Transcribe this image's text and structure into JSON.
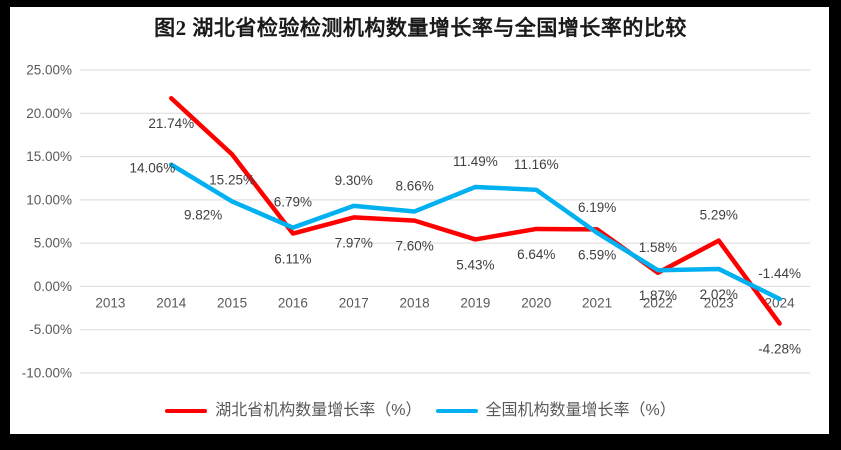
{
  "title": "图2 湖北省检验检测机构数量增长率与全国增长率的比较",
  "chart_data": {
    "type": "line",
    "title": "图2 湖北省检验检测机构数量增长率与全国增长率的比较",
    "categories": [
      "2013",
      "2014",
      "2015",
      "2016",
      "2017",
      "2018",
      "2019",
      "2020",
      "2021",
      "2022",
      "2023",
      "2024"
    ],
    "series": [
      {
        "name": "湖北省机构数量增长率（%）",
        "color": "#FF0000",
        "values": [
          null,
          21.74,
          15.25,
          6.11,
          7.97,
          7.6,
          5.43,
          6.64,
          6.59,
          1.58,
          5.29,
          -4.28
        ],
        "labels": [
          null,
          "21.74%",
          "15.25%",
          "6.11%",
          "7.97%",
          "7.60%",
          "5.43%",
          "6.64%",
          "6.59%",
          "1.58%",
          "5.29%",
          "-4.28%"
        ],
        "label_sides": [
          null,
          "below",
          "below",
          "below",
          "below",
          "below",
          "below",
          "below",
          "below",
          "above",
          "above",
          "below"
        ]
      },
      {
        "name": "全国机构数量增长率（%）",
        "color": "#00B0F0",
        "values": [
          null,
          14.06,
          9.82,
          6.79,
          9.3,
          8.66,
          11.49,
          11.16,
          6.19,
          1.87,
          2.02,
          -1.44
        ],
        "labels": [
          null,
          "14.06%",
          "9.82%",
          "6.79%",
          "9.30%",
          "8.66%",
          "11.49%",
          "11.16%",
          "6.19%",
          "1.87%",
          "2.02%",
          "-1.44%"
        ],
        "label_sides": [
          null,
          "left",
          "belowleft",
          "above",
          "above",
          "above",
          "above",
          "above",
          "above",
          "below",
          "below",
          "above"
        ]
      }
    ],
    "ylim": [
      -10,
      25
    ],
    "ytick_step": 5,
    "ytick_labels": [
      "25.00%",
      "20.00%",
      "15.00%",
      "10.00%",
      "5.00%",
      "0.00%",
      "-5.00%",
      "-10.00%"
    ],
    "grid": true,
    "legend_position": "bottom",
    "axis_label_color": "#595959",
    "grid_color": "#D9D9D9",
    "data_label_color": "#404040",
    "frame_color": "#000000"
  }
}
